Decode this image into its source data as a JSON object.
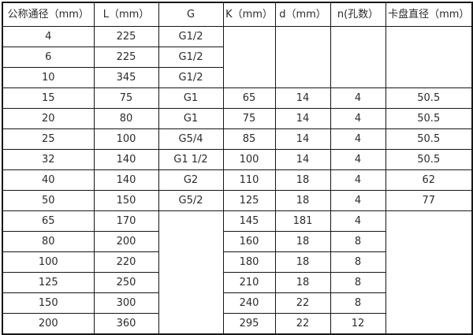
{
  "chart_data": {
    "type": "table",
    "headers": [
      "公称通径（mm）",
      "L（mm）",
      "G",
      "K（mm）",
      "d（mm）",
      "n(孔数）",
      "卡盘直径（mm）"
    ],
    "rows": [
      {
        "cells": [
          {
            "v": "4"
          },
          {
            "v": "225"
          },
          {
            "v": "G1/2"
          },
          {
            "v": "",
            "rowspan": 3
          },
          {
            "v": "",
            "rowspan": 3
          },
          {
            "v": "",
            "rowspan": 3
          },
          {
            "v": "",
            "rowspan": 3
          }
        ]
      },
      {
        "cells": [
          {
            "v": "6"
          },
          {
            "v": "225"
          },
          {
            "v": "G1/2"
          }
        ]
      },
      {
        "cells": [
          {
            "v": "10"
          },
          {
            "v": "345"
          },
          {
            "v": "G1/2"
          }
        ]
      },
      {
        "cells": [
          {
            "v": "15"
          },
          {
            "v": "75"
          },
          {
            "v": "G1"
          },
          {
            "v": "65"
          },
          {
            "v": "14"
          },
          {
            "v": "4"
          },
          {
            "v": "50.5"
          }
        ]
      },
      {
        "cells": [
          {
            "v": "20"
          },
          {
            "v": "80"
          },
          {
            "v": "G1"
          },
          {
            "v": "75"
          },
          {
            "v": "14"
          },
          {
            "v": "4"
          },
          {
            "v": "50.5"
          }
        ]
      },
      {
        "cells": [
          {
            "v": "25"
          },
          {
            "v": "100"
          },
          {
            "v": "G5/4"
          },
          {
            "v": "85"
          },
          {
            "v": "14"
          },
          {
            "v": "4"
          },
          {
            "v": "50.5"
          }
        ]
      },
      {
        "cells": [
          {
            "v": "32"
          },
          {
            "v": "140"
          },
          {
            "v": "G1 1/2"
          },
          {
            "v": "100"
          },
          {
            "v": "14"
          },
          {
            "v": "4"
          },
          {
            "v": "50.5"
          }
        ]
      },
      {
        "cells": [
          {
            "v": "40"
          },
          {
            "v": "140"
          },
          {
            "v": "G2"
          },
          {
            "v": "110"
          },
          {
            "v": "18"
          },
          {
            "v": "4"
          },
          {
            "v": "62"
          }
        ]
      },
      {
        "cells": [
          {
            "v": "50"
          },
          {
            "v": "150"
          },
          {
            "v": "G5/2"
          },
          {
            "v": "125"
          },
          {
            "v": "18"
          },
          {
            "v": "4"
          },
          {
            "v": "77"
          }
        ]
      },
      {
        "cells": [
          {
            "v": "65"
          },
          {
            "v": "170"
          },
          {
            "v": "",
            "rowspan": 6
          },
          {
            "v": "145"
          },
          {
            "v": "181"
          },
          {
            "v": "4"
          },
          {
            "v": "",
            "rowspan": 6
          }
        ]
      },
      {
        "cells": [
          {
            "v": "80"
          },
          {
            "v": "200"
          },
          {
            "v": "160"
          },
          {
            "v": "18"
          },
          {
            "v": "8"
          }
        ]
      },
      {
        "cells": [
          {
            "v": "100"
          },
          {
            "v": "220"
          },
          {
            "v": "180"
          },
          {
            "v": "18"
          },
          {
            "v": "8"
          }
        ]
      },
      {
        "cells": [
          {
            "v": "125"
          },
          {
            "v": "250"
          },
          {
            "v": "210"
          },
          {
            "v": "18"
          },
          {
            "v": "8"
          }
        ]
      },
      {
        "cells": [
          {
            "v": "150"
          },
          {
            "v": "300"
          },
          {
            "v": "240"
          },
          {
            "v": "22"
          },
          {
            "v": "8"
          }
        ]
      },
      {
        "cells": [
          {
            "v": "200"
          },
          {
            "v": "360"
          },
          {
            "v": "295"
          },
          {
            "v": "22"
          },
          {
            "v": "12"
          }
        ]
      }
    ]
  }
}
